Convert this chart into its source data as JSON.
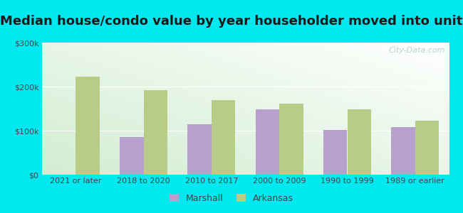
{
  "title": "Median house/condo value by year householder moved into unit",
  "categories": [
    "2021 or later",
    "2018 to 2020",
    "2010 to 2017",
    "2000 to 2009",
    "1990 to 1999",
    "1989 or earlier"
  ],
  "marshall": [
    0,
    85000,
    115000,
    148000,
    102000,
    108000
  ],
  "arkansas": [
    222000,
    192000,
    170000,
    161000,
    148000,
    122000
  ],
  "marshall_color": "#b8a0cc",
  "arkansas_color": "#b8cc88",
  "background_outer": "#00e8f0",
  "ylim": [
    0,
    300000
  ],
  "yticks": [
    0,
    100000,
    200000,
    300000
  ],
  "ytick_labels": [
    "$0",
    "$100k",
    "$200k",
    "$300k"
  ],
  "bar_width": 0.35,
  "title_fontsize": 13,
  "tick_fontsize": 8,
  "legend_labels": [
    "Marshall",
    "Arkansas"
  ],
  "watermark": "City-Data.com"
}
